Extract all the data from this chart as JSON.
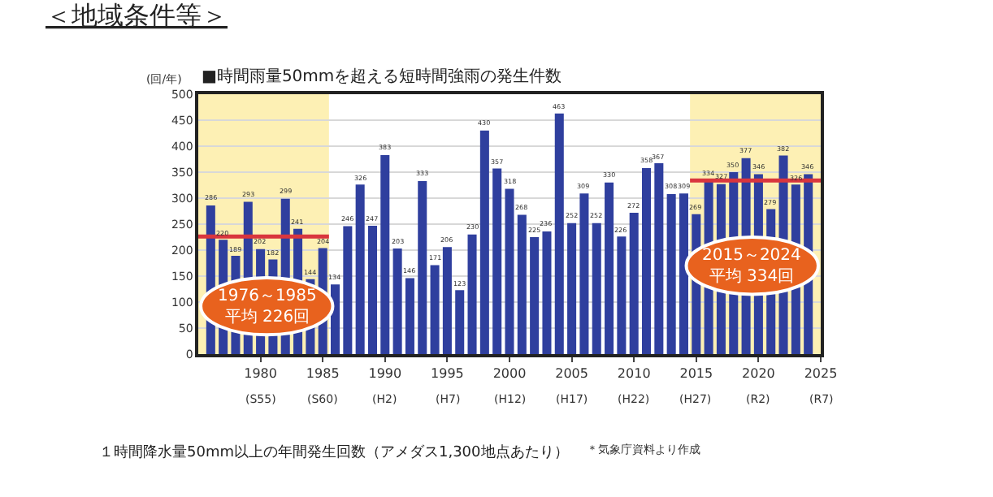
{
  "chart_data": {
    "type": "bar",
    "title": "＜地域条件等＞",
    "subtitle": "■時間雨量50mmを超える短時間強雨の発生件数",
    "ylabel": "(回/年)",
    "xlabel": "１時間降水量50mm以上の年間発生回数（アメダス1,300地点あたり）",
    "x": [
      1976,
      1977,
      1978,
      1979,
      1980,
      1981,
      1982,
      1983,
      1984,
      1985,
      1986,
      1987,
      1988,
      1989,
      1990,
      1991,
      1992,
      1993,
      1994,
      1995,
      1996,
      1997,
      1998,
      1999,
      2000,
      2001,
      2002,
      2003,
      2004,
      2005,
      2006,
      2007,
      2008,
      2009,
      2010,
      2011,
      2012,
      2013,
      2014,
      2015,
      2016,
      2017,
      2018,
      2019,
      2020,
      2021,
      2022,
      2023,
      2024
    ],
    "series": [
      {
        "color": "#2f3f9e",
        "values": [
          286,
          220,
          189,
          293,
          202,
          182,
          299,
          241,
          144,
          204,
          134,
          246,
          326,
          247,
          383,
          203,
          146,
          333,
          171,
          206,
          123,
          230,
          430,
          357,
          318,
          268,
          225,
          236,
          463,
          252,
          309,
          252,
          330,
          226,
          272,
          358,
          367,
          308,
          309,
          269,
          334,
          327,
          350,
          377,
          346,
          279,
          382,
          326,
          346
        ],
        "value_labels": [
          "286",
          "220",
          "189",
          "293",
          "202",
          "182",
          "299",
          "241",
          "144",
          "204",
          "134",
          "246",
          "326",
          "247",
          "383",
          "203",
          "146",
          "333",
          "171",
          "206",
          "123",
          "230",
          "430",
          "357",
          "318",
          "268",
          "225",
          "236",
          "463",
          "252",
          "309",
          "252",
          "330",
          "226",
          "272",
          "358",
          "367",
          "308",
          "309",
          "269",
          "334",
          "327",
          "350",
          "377",
          "346",
          "279",
          "382",
          "326",
          "346"
        ]
      },
      {
        "type": "line",
        "color": "#d9363e",
        "x": [
          1975,
          1985.5
        ],
        "values": [
          226,
          226
        ]
      },
      {
        "type": "line",
        "color": "#d9363e",
        "x": [
          2014.5,
          2025
        ],
        "values": [
          334,
          334
        ]
      }
    ],
    "bands": [
      {
        "axis": "x",
        "from": 1975,
        "to": 1985.5,
        "color": "#fdf0b4"
      },
      {
        "axis": "x",
        "from": 2014.5,
        "to": 2025,
        "color": "#fdf0b4"
      }
    ],
    "annotations": [
      {
        "text": "1976～1985\n平均 226回",
        "x": 1980.5,
        "y": 92
      },
      {
        "text": "2015～2024\n平均 334回",
        "x": 2019.5,
        "y": 170
      },
      "＊気象庁資料より作成",
      "(S55)",
      "(S60)",
      "(H2)",
      "(H7)",
      "(H12)",
      "(H17)",
      "(H22)",
      "(H27)",
      "(R2)",
      "(R7)"
    ],
    "xlim": [
      1975,
      2025
    ],
    "xticks": [
      1980,
      1985,
      1990,
      1995,
      2000,
      2005,
      2010,
      2015,
      2020,
      2025
    ],
    "ylim": [
      0,
      500
    ],
    "yticks": [
      0,
      50,
      100,
      150,
      200,
      250,
      300,
      350,
      400,
      450,
      500
    ],
    "grid": "y"
  }
}
